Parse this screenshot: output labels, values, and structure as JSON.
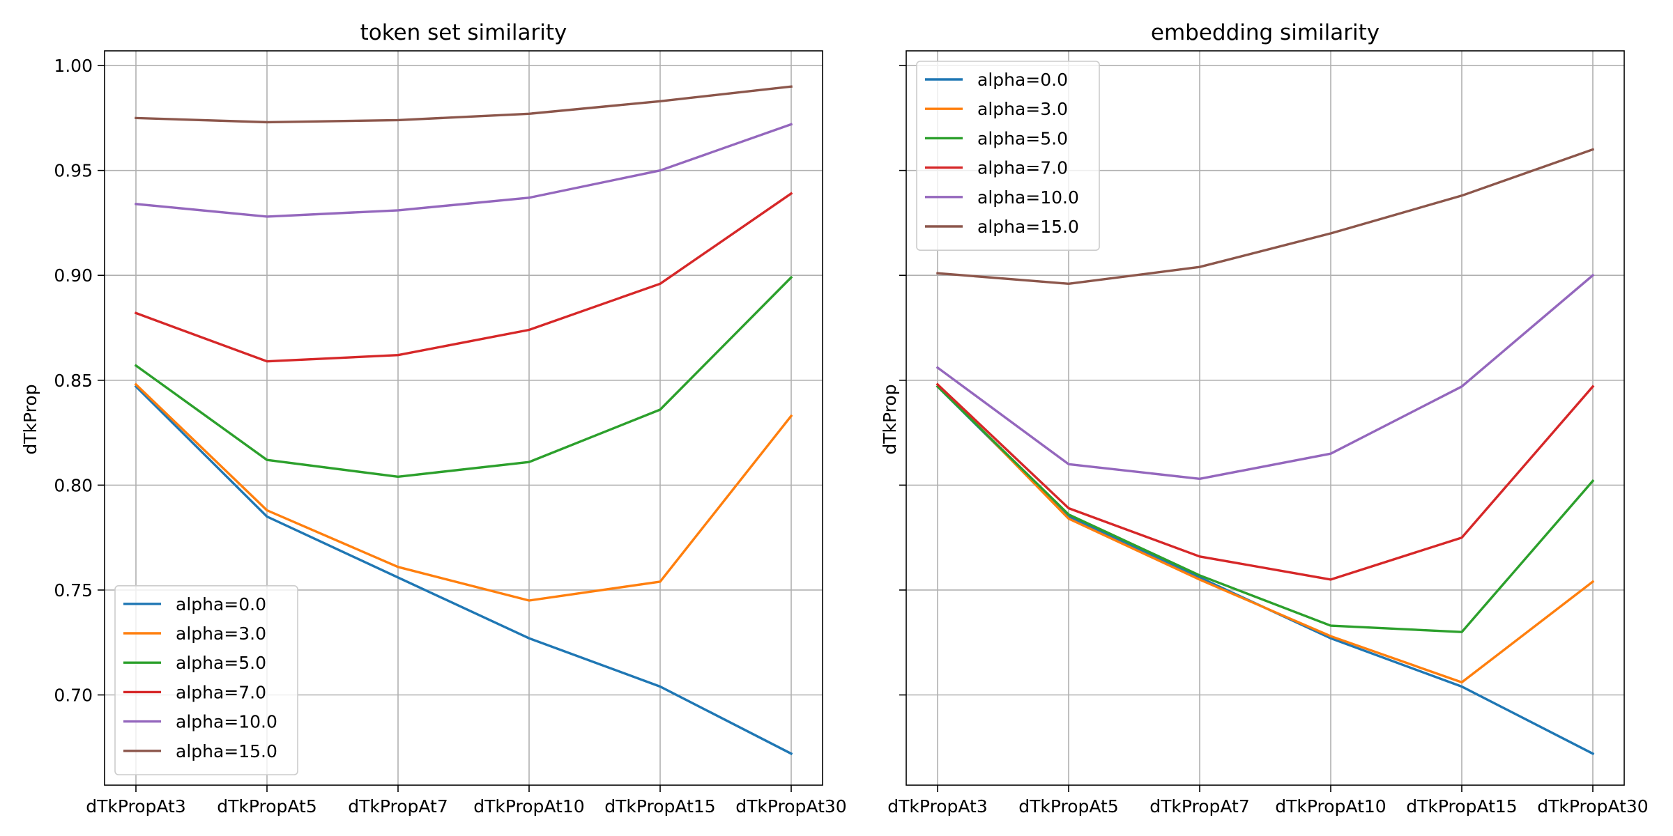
{
  "chart_data": [
    {
      "type": "line",
      "title": "token set similarity",
      "xlabel": "",
      "ylabel": "dTkProp",
      "categories": [
        "dTkPropAt3",
        "dTkPropAt5",
        "dTkPropAt7",
        "dTkPropAt10",
        "dTkPropAt15",
        "dTkPropAt30"
      ],
      "ylim": [
        0.657,
        1.007
      ],
      "yticks": [
        0.7,
        0.75,
        0.8,
        0.85,
        0.9,
        0.95,
        1.0
      ],
      "ytick_labels": [
        "0.70",
        "0.75",
        "0.80",
        "0.85",
        "0.90",
        "0.95",
        "1.00"
      ],
      "grid": true,
      "legend_position": "lower-left",
      "series": [
        {
          "name": "alpha=0.0",
          "color": "#1f77b4",
          "values": [
            0.847,
            0.785,
            0.756,
            0.727,
            0.704,
            0.672
          ]
        },
        {
          "name": "alpha=3.0",
          "color": "#ff7f0e",
          "values": [
            0.848,
            0.788,
            0.761,
            0.745,
            0.754,
            0.833
          ]
        },
        {
          "name": "alpha=5.0",
          "color": "#2ca02c",
          "values": [
            0.857,
            0.812,
            0.804,
            0.811,
            0.836,
            0.899
          ]
        },
        {
          "name": "alpha=7.0",
          "color": "#d62728",
          "values": [
            0.882,
            0.859,
            0.862,
            0.874,
            0.896,
            0.939
          ]
        },
        {
          "name": "alpha=10.0",
          "color": "#9467bd",
          "values": [
            0.934,
            0.928,
            0.931,
            0.937,
            0.95,
            0.972
          ]
        },
        {
          "name": "alpha=15.0",
          "color": "#8c564b",
          "values": [
            0.975,
            0.973,
            0.974,
            0.977,
            0.983,
            0.99
          ]
        }
      ]
    },
    {
      "type": "line",
      "title": "embedding similarity",
      "xlabel": "",
      "ylabel": "dTkProp",
      "categories": [
        "dTkPropAt3",
        "dTkPropAt5",
        "dTkPropAt7",
        "dTkPropAt10",
        "dTkPropAt15",
        "dTkPropAt30"
      ],
      "ylim": [
        0.657,
        1.007
      ],
      "yticks": [
        0.7,
        0.75,
        0.8,
        0.85,
        0.9,
        0.95,
        1.0
      ],
      "ytick_labels": [],
      "grid": true,
      "legend_position": "upper-left",
      "series": [
        {
          "name": "alpha=0.0",
          "color": "#1f77b4",
          "values": [
            0.847,
            0.785,
            0.756,
            0.727,
            0.704,
            0.672
          ]
        },
        {
          "name": "alpha=3.0",
          "color": "#ff7f0e",
          "values": [
            0.848,
            0.784,
            0.755,
            0.728,
            0.706,
            0.754
          ]
        },
        {
          "name": "alpha=5.0",
          "color": "#2ca02c",
          "values": [
            0.847,
            0.786,
            0.757,
            0.733,
            0.73,
            0.802
          ]
        },
        {
          "name": "alpha=7.0",
          "color": "#d62728",
          "values": [
            0.848,
            0.789,
            0.766,
            0.755,
            0.775,
            0.847
          ]
        },
        {
          "name": "alpha=10.0",
          "color": "#9467bd",
          "values": [
            0.856,
            0.81,
            0.803,
            0.815,
            0.847,
            0.9
          ]
        },
        {
          "name": "alpha=15.0",
          "color": "#8c564b",
          "values": [
            0.901,
            0.896,
            0.904,
            0.92,
            0.938,
            0.96
          ]
        }
      ]
    }
  ]
}
